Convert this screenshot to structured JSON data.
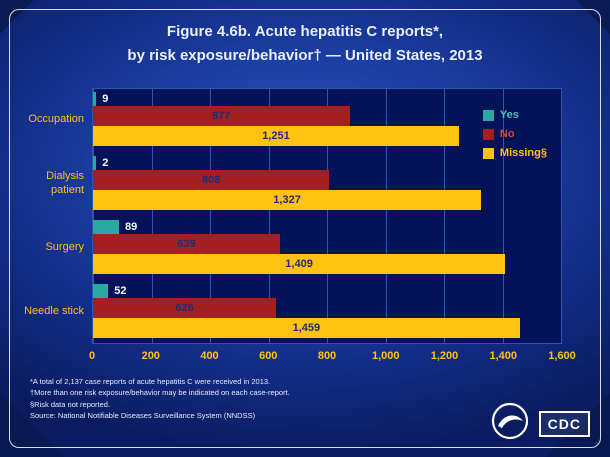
{
  "slide": {
    "title_line1": "Figure 4.6b. Acute hepatitis C reports*,",
    "title_line2": "by risk exposure/behavior† — United States, 2013",
    "footnotes": [
      "*A total of 2,137 case reports of acute hepatitis C were received in 2013.",
      "†More than one risk exposure/behavior may be indicated on each case-report.",
      "§Risk data not reported.",
      "Source: National Notifiable Diseases Surveillance System (NNDSS)"
    ],
    "logos": {
      "cdc_label": "CDC"
    }
  },
  "chart_data": {
    "type": "bar",
    "orientation": "horizontal",
    "title": "Figure 4.6b. Acute hepatitis C reports*, by risk exposure/behavior† — United States, 2013",
    "categories": [
      "Occupation",
      "Dialysis patient",
      "Surgery",
      "Needle stick"
    ],
    "series": [
      {
        "key": "yes",
        "name": "Yes",
        "color": "#2ba8a2",
        "label_color": "#46c2b8",
        "values": [
          9,
          2,
          89,
          52
        ]
      },
      {
        "key": "no",
        "name": "No",
        "color": "#a32020",
        "label_color": "#d8453a",
        "values": [
          877,
          808,
          639,
          626
        ]
      },
      {
        "key": "missing",
        "name": "Missing§",
        "color": "#ffc20e",
        "label_color": "#ffc20e",
        "values": [
          1251,
          1327,
          1409,
          1459
        ]
      }
    ],
    "xlim": [
      0,
      1600
    ],
    "xticks": [
      "0",
      "200",
      "400",
      "600",
      "800",
      "1,000",
      "1,200",
      "1,400",
      "1,600"
    ],
    "legend_position": "right-inside",
    "grid": "vertical",
    "plot_background": "#041258",
    "inner_label_color": "#1d2d78",
    "outer_label_color": "#f4f7ff",
    "axis_label_color": "#ffc20e"
  }
}
